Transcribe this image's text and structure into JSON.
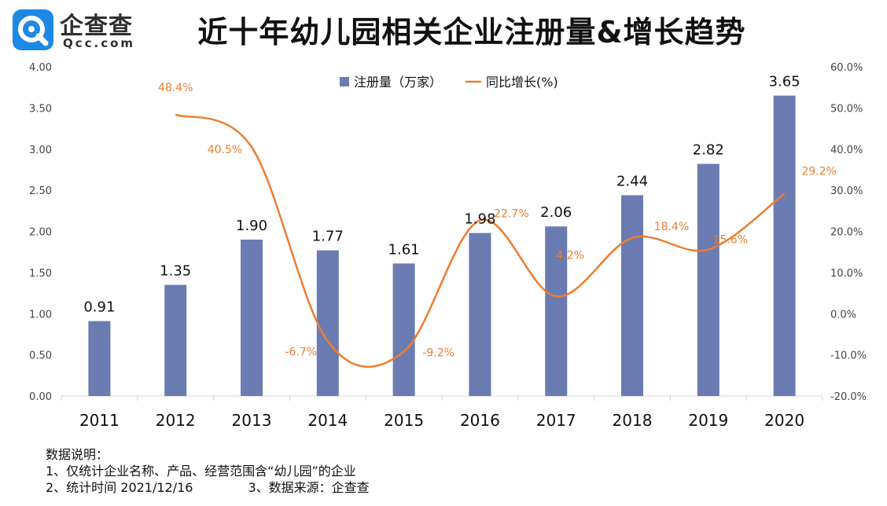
{
  "brand": {
    "name": "企查查",
    "domain": "Qcc.com",
    "color": "#1e88e5"
  },
  "chart_data": {
    "type": "bar",
    "title": "近十年幼儿园相关企业注册量&增长趋势",
    "categories": [
      "2011",
      "2012",
      "2013",
      "2014",
      "2015",
      "2016",
      "2017",
      "2018",
      "2019",
      "2020"
    ],
    "series": [
      {
        "name": "注册量（万家）",
        "type": "bar",
        "axis": "left",
        "color": "#6a7cb1",
        "values": [
          0.91,
          1.35,
          1.9,
          1.77,
          1.61,
          1.98,
          2.06,
          2.44,
          2.82,
          3.65
        ],
        "labels": [
          "0.91",
          "1.35",
          "1.90",
          "1.77",
          "1.61",
          "1.98",
          "2.06",
          "2.44",
          "2.82",
          "3.65"
        ]
      },
      {
        "name": "同比增长(%)",
        "type": "line",
        "axis": "right",
        "color": "#ed7d31",
        "values": [
          null,
          48.4,
          40.5,
          -6.7,
          -9.2,
          22.7,
          4.2,
          18.4,
          15.6,
          29.2
        ],
        "labels": [
          "",
          "48.4%",
          "40.5%",
          "-6.7%",
          "-9.2%",
          "22.7%",
          "4.2%",
          "18.4%",
          "15.6%",
          "29.2%"
        ]
      }
    ],
    "y_left": {
      "min": 0,
      "max": 4,
      "step": 0.5,
      "ticks": [
        "0.00",
        "0.50",
        "1.00",
        "1.50",
        "2.00",
        "2.50",
        "3.00",
        "3.50",
        "4.00"
      ]
    },
    "y_right": {
      "min": -20,
      "max": 60,
      "step": 10,
      "ticks": [
        "-20.0%",
        "-10.0%",
        "0.0%",
        "10.0%",
        "20.0%",
        "30.0%",
        "40.0%",
        "50.0%",
        "60.0%"
      ]
    },
    "legend": "top-center",
    "grid": false
  },
  "notes": {
    "heading": "数据说明：",
    "line1": "1、仅统计企业名称、产品、经营范围含“幼儿园”的企业",
    "line2": "2、统计时间 2021/12/16",
    "line3": "3、数据来源：企查查"
  }
}
